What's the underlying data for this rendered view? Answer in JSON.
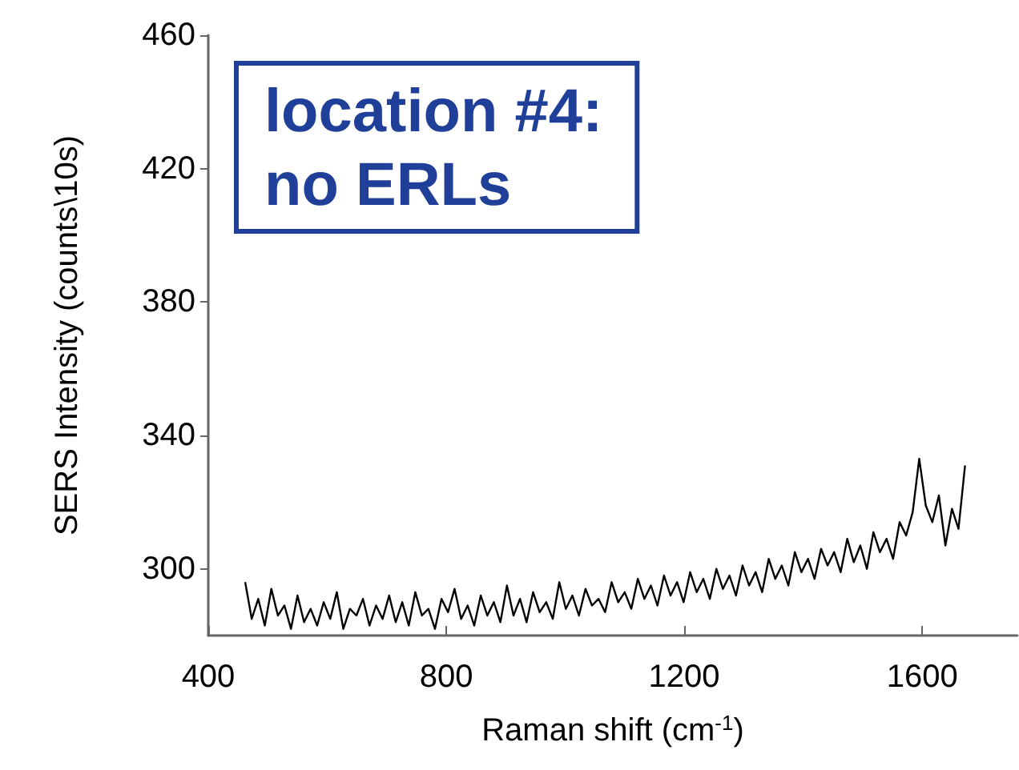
{
  "chart_data": {
    "type": "line",
    "xlabel": "Raman shift (cm$^{-1}$)",
    "ylabel": "SERS Intensity (counts\\10s)",
    "annotations": [
      "location #4:\nno ERLs"
    ],
    "xlim": [
      400,
      1760
    ],
    "xticks": [
      400,
      800,
      1200,
      1600
    ],
    "ylim": [
      280,
      460
    ],
    "yticks": [
      300,
      340,
      380,
      420,
      460
    ],
    "marker": "none",
    "line_style": "solid",
    "x": [
      462,
      473,
      484,
      495,
      506,
      517,
      528,
      539,
      550,
      561,
      572,
      583,
      594,
      605,
      616,
      627,
      638,
      649,
      660,
      671,
      682,
      693,
      704,
      715,
      726,
      737,
      748,
      759,
      770,
      781,
      792,
      803,
      814,
      825,
      836,
      847,
      858,
      869,
      880,
      891,
      902,
      913,
      924,
      935,
      946,
      957,
      968,
      979,
      990,
      1001,
      1012,
      1023,
      1034,
      1045,
      1056,
      1067,
      1078,
      1089,
      1100,
      1111,
      1122,
      1133,
      1144,
      1155,
      1166,
      1177,
      1188,
      1199,
      1210,
      1221,
      1232,
      1243,
      1254,
      1265,
      1276,
      1287,
      1298,
      1309,
      1320,
      1331,
      1342,
      1353,
      1364,
      1375,
      1386,
      1397,
      1408,
      1419,
      1430,
      1441,
      1452,
      1463,
      1474,
      1485,
      1496,
      1507,
      1518,
      1529,
      1540,
      1551,
      1562,
      1573,
      1584,
      1595,
      1606,
      1617,
      1628,
      1639,
      1650,
      1661,
      1672
    ],
    "series": [
      {
        "color": "#000000",
        "values": [
          296,
          285,
          291,
          283,
          294,
          286,
          289,
          282,
          292,
          284,
          288,
          283,
          290,
          285,
          293,
          282,
          288,
          286,
          291,
          283,
          289,
          285,
          292,
          284,
          290,
          283,
          293,
          286,
          288,
          282,
          291,
          287,
          294,
          285,
          289,
          283,
          292,
          286,
          290,
          284,
          295,
          286,
          291,
          284,
          293,
          287,
          290,
          285,
          296,
          288,
          292,
          286,
          294,
          289,
          291,
          287,
          296,
          290,
          293,
          288,
          297,
          291,
          295,
          289,
          298,
          292,
          296,
          290,
          299,
          293,
          297,
          291,
          300,
          294,
          298,
          292,
          301,
          295,
          299,
          293,
          303,
          297,
          301,
          295,
          305,
          299,
          303,
          297,
          306,
          301,
          305,
          299,
          309,
          302,
          307,
          300,
          311,
          305,
          309,
          303,
          314,
          310,
          317,
          333,
          319,
          314,
          322,
          307,
          318,
          312,
          331
        ]
      }
    ]
  }
}
